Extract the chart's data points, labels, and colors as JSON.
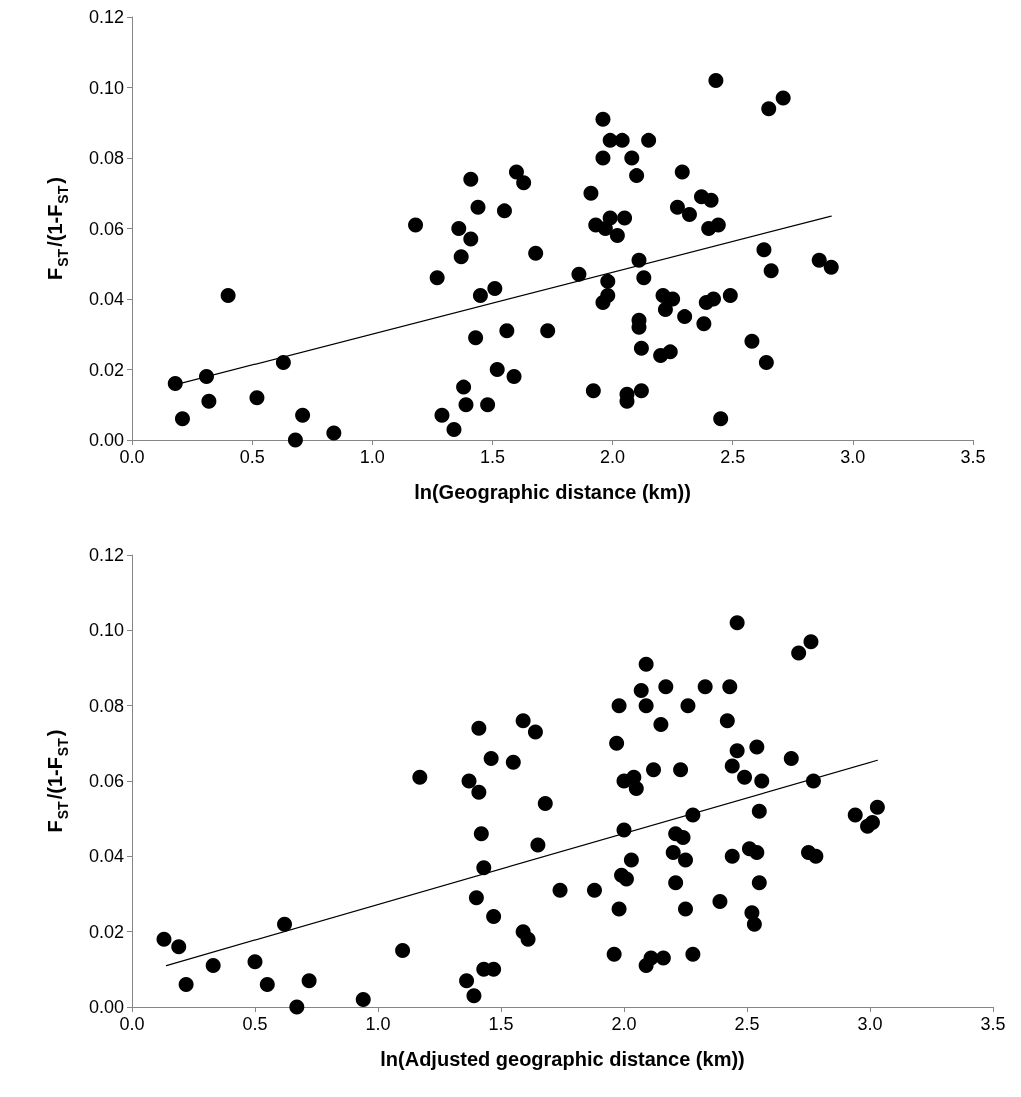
{
  "chart_data": [
    {
      "type": "scatter",
      "xlabel": "ln(Geographic distance (km))",
      "ylabel": "F$_{ST}$/(1-F$_{ST}$)",
      "xlim": [
        0,
        3.5
      ],
      "ylim": [
        0,
        0.12
      ],
      "xticks": [
        {
          "value": 0,
          "label": "0.0"
        },
        {
          "value": 0.5,
          "label": "0.5"
        },
        {
          "value": 1,
          "label": "1.0"
        },
        {
          "value": 1.5,
          "label": "1.5"
        },
        {
          "value": 2,
          "label": "2.0"
        },
        {
          "value": 2.5,
          "label": "2.5"
        },
        {
          "value": 3,
          "label": "3.0"
        },
        {
          "value": 3.5,
          "label": "3.5"
        }
      ],
      "yticks": [
        {
          "value": 0,
          "label": "0.00"
        },
        {
          "value": 0.02,
          "label": "0.02"
        },
        {
          "value": 0.04,
          "label": "0.04"
        },
        {
          "value": 0.06,
          "label": "0.06"
        },
        {
          "value": 0.08,
          "label": "0.08"
        },
        {
          "value": 0.1,
          "label": "0.10"
        },
        {
          "value": 0.12,
          "label": "0.12"
        }
      ],
      "marker": "circle",
      "series": [
        {
          "color": "#000000",
          "x": [
            0.18,
            0.21,
            0.31,
            0.32,
            0.4,
            0.52,
            0.63,
            0.68,
            0.71,
            0.84,
            1.18,
            1.27,
            1.29,
            1.34,
            1.36,
            1.37,
            1.38,
            1.39,
            1.41,
            1.41,
            1.43,
            1.44,
            1.45,
            1.48,
            1.51,
            1.52,
            1.55,
            1.56,
            1.59,
            1.6,
            1.63,
            1.68,
            1.73,
            1.86,
            1.91,
            1.92,
            1.93,
            1.96,
            1.96,
            1.96,
            1.97,
            1.98,
            1.98,
            1.99,
            1.99,
            2.02,
            2.04,
            2.05,
            2.06,
            2.06,
            2.08,
            2.1,
            2.11,
            2.11,
            2.11,
            2.12,
            2.12,
            2.13,
            2.15,
            2.2,
            2.21,
            2.22,
            2.24,
            2.25,
            2.27,
            2.29,
            2.3,
            2.32,
            2.37,
            2.38,
            2.39,
            2.4,
            2.41,
            2.42,
            2.43,
            2.44,
            2.45,
            2.49,
            2.58,
            2.63,
            2.64,
            2.65,
            2.66,
            2.71,
            2.86,
            2.91
          ],
          "values": [
            0.016,
            0.006,
            0.018,
            0.011,
            0.041,
            0.012,
            0.022,
            0.0,
            0.007,
            0.002,
            0.061,
            0.046,
            0.007,
            0.003,
            0.06,
            0.052,
            0.015,
            0.01,
            0.074,
            0.057,
            0.029,
            0.066,
            0.041,
            0.01,
            0.043,
            0.02,
            0.065,
            0.031,
            0.018,
            0.076,
            0.073,
            0.053,
            0.031,
            0.047,
            0.07,
            0.014,
            0.061,
            0.091,
            0.08,
            0.039,
            0.06,
            0.045,
            0.041,
            0.063,
            0.085,
            0.058,
            0.085,
            0.063,
            0.013,
            0.011,
            0.08,
            0.075,
            0.051,
            0.034,
            0.032,
            0.026,
            0.014,
            0.046,
            0.085,
            0.024,
            0.041,
            0.037,
            0.025,
            0.04,
            0.066,
            0.076,
            0.035,
            0.064,
            0.069,
            0.033,
            0.039,
            0.06,
            0.068,
            0.04,
            0.102,
            0.061,
            0.006,
            0.041,
            0.028,
            0.054,
            0.022,
            0.094,
            0.048,
            0.097,
            0.051,
            0.049
          ]
        },
        {
          "type": "line",
          "marker": "none",
          "color": "#000000",
          "x": [
            0.17,
            2.91
          ],
          "values": [
            0.0155,
            0.0635
          ]
        }
      ]
    },
    {
      "type": "scatter",
      "xlabel": "ln(Adjusted geographic distance (km))",
      "ylabel": "F$_{ST}$/(1-F$_{ST}$)",
      "xlim": [
        0,
        3.5
      ],
      "ylim": [
        0,
        0.12
      ],
      "xticks": [
        {
          "value": 0,
          "label": "0.0"
        },
        {
          "value": 0.5,
          "label": "0.5"
        },
        {
          "value": 1,
          "label": "1.0"
        },
        {
          "value": 1.5,
          "label": "1.5"
        },
        {
          "value": 2,
          "label": "2.0"
        },
        {
          "value": 2.5,
          "label": "2.5"
        },
        {
          "value": 3,
          "label": "3.0"
        },
        {
          "value": 3.5,
          "label": "3.5"
        }
      ],
      "yticks": [
        {
          "value": 0,
          "label": "0.00"
        },
        {
          "value": 0.02,
          "label": "0.02"
        },
        {
          "value": 0.04,
          "label": "0.04"
        },
        {
          "value": 0.06,
          "label": "0.06"
        },
        {
          "value": 0.08,
          "label": "0.08"
        },
        {
          "value": 0.1,
          "label": "0.10"
        },
        {
          "value": 0.12,
          "label": "0.12"
        }
      ],
      "marker": "circle",
      "series": [
        {
          "color": "#000000",
          "x": [
            0.13,
            0.19,
            0.22,
            0.33,
            0.5,
            0.55,
            0.62,
            0.67,
            0.72,
            0.94,
            1.1,
            1.17,
            1.36,
            1.37,
            1.39,
            1.4,
            1.41,
            1.41,
            1.42,
            1.43,
            1.43,
            1.46,
            1.47,
            1.47,
            1.55,
            1.59,
            1.59,
            1.61,
            1.64,
            1.65,
            1.68,
            1.74,
            1.88,
            1.96,
            1.97,
            1.98,
            1.98,
            1.99,
            2.0,
            2.0,
            2.01,
            2.03,
            2.04,
            2.05,
            2.07,
            2.09,
            2.09,
            2.09,
            2.11,
            2.12,
            2.15,
            2.16,
            2.17,
            2.2,
            2.21,
            2.21,
            2.23,
            2.24,
            2.25,
            2.25,
            2.26,
            2.28,
            2.28,
            2.33,
            2.39,
            2.42,
            2.43,
            2.44,
            2.44,
            2.46,
            2.46,
            2.49,
            2.51,
            2.52,
            2.53,
            2.54,
            2.54,
            2.55,
            2.55,
            2.56,
            2.68,
            2.71,
            2.75,
            2.76,
            2.77,
            2.78,
            2.94,
            2.99,
            3.01,
            3.03
          ],
          "values": [
            0.018,
            0.016,
            0.006,
            0.011,
            0.012,
            0.006,
            0.022,
            0.0,
            0.007,
            0.002,
            0.015,
            0.061,
            0.007,
            0.06,
            0.003,
            0.029,
            0.074,
            0.057,
            0.046,
            0.037,
            0.01,
            0.066,
            0.024,
            0.01,
            0.065,
            0.076,
            0.02,
            0.018,
            0.073,
            0.043,
            0.054,
            0.031,
            0.031,
            0.014,
            0.07,
            0.08,
            0.026,
            0.035,
            0.06,
            0.047,
            0.034,
            0.039,
            0.061,
            0.058,
            0.084,
            0.091,
            0.08,
            0.011,
            0.013,
            0.063,
            0.075,
            0.013,
            0.085,
            0.041,
            0.046,
            0.033,
            0.063,
            0.045,
            0.039,
            0.026,
            0.08,
            0.051,
            0.014,
            0.085,
            0.028,
            0.076,
            0.085,
            0.064,
            0.04,
            0.102,
            0.068,
            0.061,
            0.042,
            0.025,
            0.022,
            0.069,
            0.041,
            0.052,
            0.033,
            0.06,
            0.066,
            0.094,
            0.041,
            0.097,
            0.06,
            0.04,
            0.051,
            0.048,
            0.049,
            0.053
          ]
        },
        {
          "type": "line",
          "marker": "none",
          "color": "#000000",
          "x": [
            0.14,
            3.03
          ],
          "values": [
            0.011,
            0.0655
          ]
        }
      ]
    }
  ]
}
